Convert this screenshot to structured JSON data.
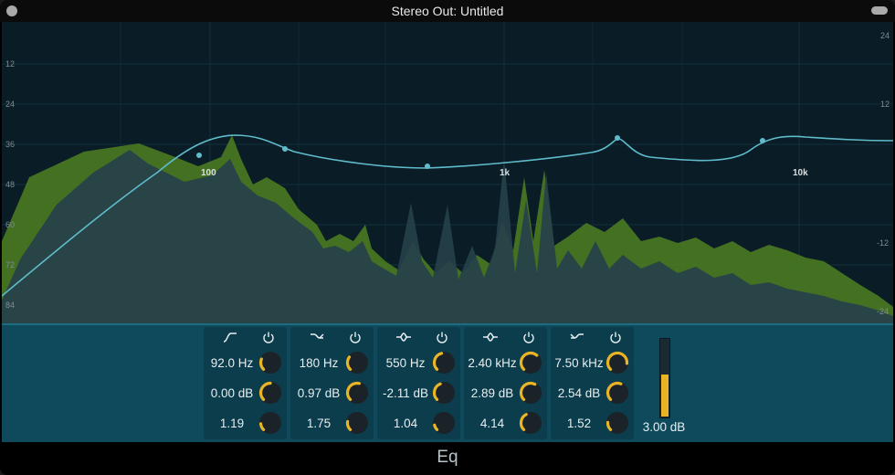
{
  "window": {
    "title": "Stereo Out: Untitled"
  },
  "graph": {
    "db_left_labels": [
      "12",
      "24",
      "36",
      "48",
      "60",
      "72",
      "84"
    ],
    "db_right_labels": [
      "24",
      "12",
      "-12",
      "-24"
    ],
    "freq_labels": [
      "100",
      "1k",
      "10k"
    ]
  },
  "bands": [
    {
      "type_icon": "low-cut-icon",
      "freq": "92.0 Hz",
      "gain": "0.00 dB",
      "q": "1.19",
      "knobs": [
        0.25,
        0.5,
        0.15
      ]
    },
    {
      "type_icon": "low-shelf-icon",
      "freq": "180 Hz",
      "gain": "0.97 dB",
      "q": "1.75",
      "knobs": [
        0.3,
        0.55,
        0.2
      ]
    },
    {
      "type_icon": "bell-icon",
      "freq": "550 Hz",
      "gain": "-2.11 dB",
      "q": "1.04",
      "knobs": [
        0.45,
        0.42,
        0.12
      ]
    },
    {
      "type_icon": "bell-icon",
      "freq": "2.40 kHz",
      "gain": "2.89 dB",
      "q": "4.14",
      "knobs": [
        0.65,
        0.6,
        0.4
      ]
    },
    {
      "type_icon": "high-shelf-icon",
      "freq": "7.50 kHz",
      "gain": "2.54 dB",
      "q": "1.52",
      "knobs": [
        0.85,
        0.58,
        0.18
      ]
    }
  ],
  "output": {
    "gain_label": "3.00 dB",
    "level": 0.55
  },
  "footer": {
    "plugin_name": "Eq"
  },
  "colors": {
    "accent": "#e9b526",
    "curve": "#5fbccc",
    "spectrum_green": "#5f8f2a",
    "panel": "#0e4a5c"
  }
}
